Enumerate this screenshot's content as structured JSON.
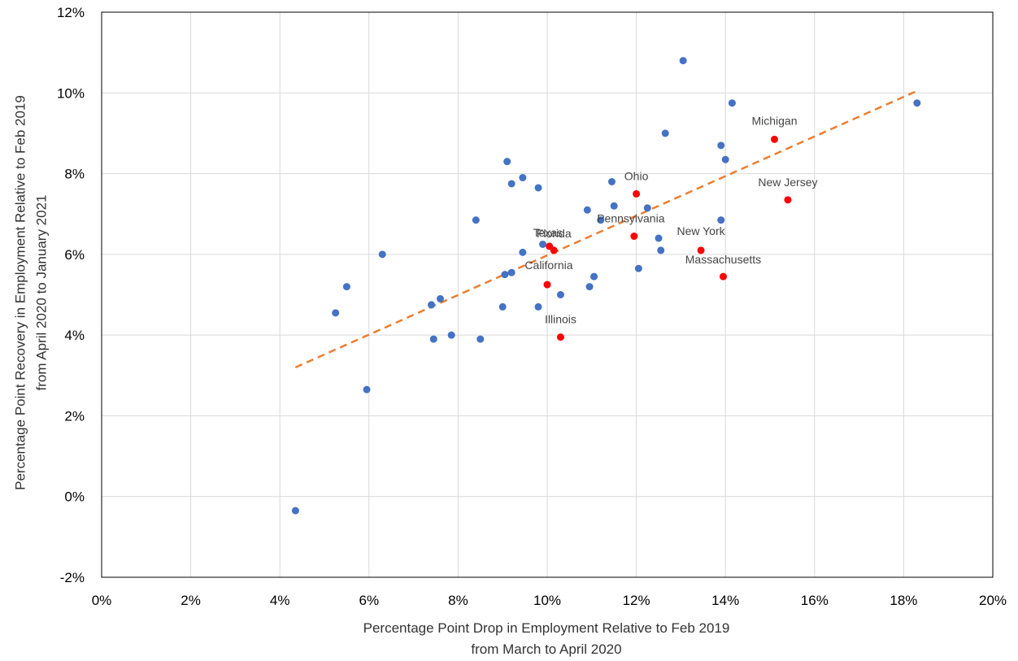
{
  "chart_data": {
    "type": "scatter",
    "title": "",
    "xlabel": [
      "Percentage Point Drop in Employment Relative to Feb 2019",
      "from March to April 2020"
    ],
    "ylabel": [
      "Percentage Point Recovery in Employment Relative to Feb 2019",
      "from April 2020 to January 2021"
    ],
    "xlim": [
      0,
      20
    ],
    "ylim": [
      -2,
      12
    ],
    "x_ticks": [
      0,
      2,
      4,
      6,
      8,
      10,
      12,
      14,
      16,
      18,
      20
    ],
    "y_ticks": [
      -2,
      0,
      2,
      4,
      6,
      8,
      10,
      12
    ],
    "x_tick_labels": [
      "0%",
      "2%",
      "4%",
      "6%",
      "8%",
      "10%",
      "12%",
      "14%",
      "16%",
      "18%",
      "20%"
    ],
    "y_tick_labels": [
      "-2%",
      "0%",
      "2%",
      "4%",
      "6%",
      "8%",
      "10%",
      "12%"
    ],
    "grid": true,
    "legend": "none",
    "colors": {
      "other_states": "#4472c4",
      "highlighted_states": "#ff0000",
      "trendline": "#ed7d31",
      "grid": "#d9d9d9"
    },
    "series": [
      {
        "values": [
          {
            "x": 4.35,
            "y": -0.35
          },
          {
            "x": 5.25,
            "y": 4.55
          },
          {
            "x": 5.5,
            "y": 5.2
          },
          {
            "x": 5.95,
            "y": 2.65
          },
          {
            "x": 6.3,
            "y": 6.0
          },
          {
            "x": 7.4,
            "y": 4.75
          },
          {
            "x": 7.45,
            "y": 3.9
          },
          {
            "x": 7.6,
            "y": 4.9
          },
          {
            "x": 7.85,
            "y": 4.0
          },
          {
            "x": 8.4,
            "y": 6.85
          },
          {
            "x": 8.5,
            "y": 3.9
          },
          {
            "x": 9.0,
            "y": 4.7
          },
          {
            "x": 9.05,
            "y": 5.5
          },
          {
            "x": 9.1,
            "y": 8.3
          },
          {
            "x": 9.2,
            "y": 7.75
          },
          {
            "x": 9.2,
            "y": 5.55
          },
          {
            "x": 9.45,
            "y": 7.9
          },
          {
            "x": 9.45,
            "y": 6.05
          },
          {
            "x": 9.8,
            "y": 7.65
          },
          {
            "x": 9.8,
            "y": 4.7
          },
          {
            "x": 9.9,
            "y": 6.25
          },
          {
            "x": 10.3,
            "y": 5.0
          },
          {
            "x": 10.9,
            "y": 7.1
          },
          {
            "x": 10.95,
            "y": 5.2
          },
          {
            "x": 11.05,
            "y": 5.45
          },
          {
            "x": 11.2,
            "y": 6.85
          },
          {
            "x": 11.45,
            "y": 7.8
          },
          {
            "x": 11.5,
            "y": 7.2
          },
          {
            "x": 12.05,
            "y": 5.65
          },
          {
            "x": 12.25,
            "y": 7.15
          },
          {
            "x": 12.5,
            "y": 6.4
          },
          {
            "x": 12.55,
            "y": 6.1
          },
          {
            "x": 12.65,
            "y": 9.0
          },
          {
            "x": 13.05,
            "y": 10.8
          },
          {
            "x": 13.9,
            "y": 8.7
          },
          {
            "x": 13.9,
            "y": 6.85
          },
          {
            "x": 14.0,
            "y": 8.35
          },
          {
            "x": 14.15,
            "y": 9.75
          },
          {
            "x": 18.3,
            "y": 9.75
          }
        ]
      },
      {
        "values": [
          {
            "x": 10.0,
            "y": 5.25,
            "label": "California"
          },
          {
            "x": 10.05,
            "y": 6.2,
            "label": "Texas"
          },
          {
            "x": 10.15,
            "y": 6.1,
            "label": "Florida"
          },
          {
            "x": 10.3,
            "y": 3.95,
            "label": "Illinois"
          },
          {
            "x": 11.95,
            "y": 6.45,
            "label": "Pennsylvania"
          },
          {
            "x": 12.0,
            "y": 7.5,
            "label": "Ohio"
          },
          {
            "x": 13.45,
            "y": 6.1,
            "label": "New York"
          },
          {
            "x": 13.95,
            "y": 5.45,
            "label": "Massachusetts"
          },
          {
            "x": 15.1,
            "y": 8.85,
            "label": "Michigan"
          },
          {
            "x": 15.4,
            "y": 7.35,
            "label": "New Jersey"
          }
        ]
      }
    ],
    "trendline": {
      "style": "dashed",
      "x": [
        4.35,
        18.3
      ],
      "y": [
        3.2,
        10.05
      ]
    }
  }
}
